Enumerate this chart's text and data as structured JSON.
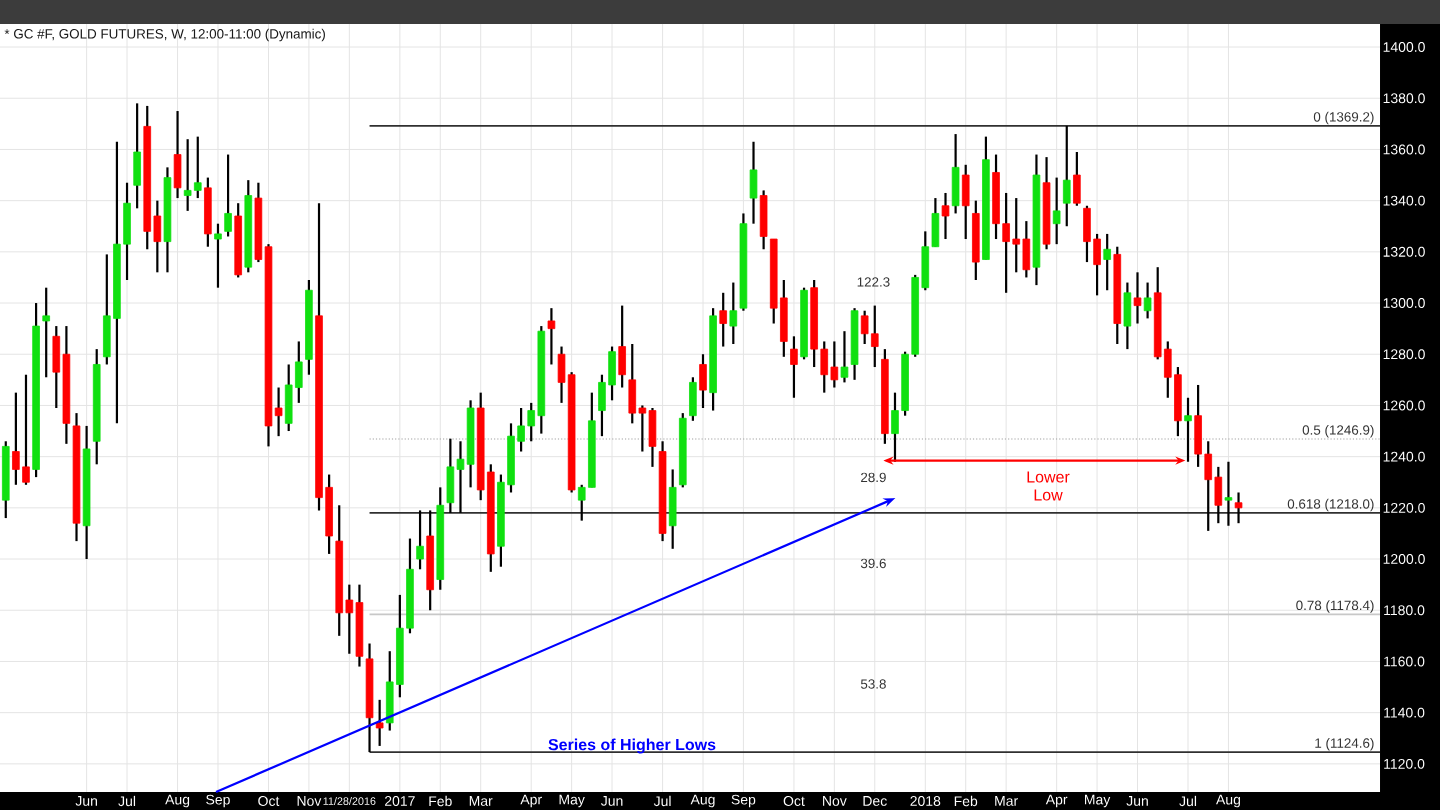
{
  "chart_data": {
    "type": "candlestick",
    "title": "* GC #F, GOLD FUTURES, W, 12:00-11:00 (Dynamic)",
    "xlim": [
      "2016-04-04",
      "2018-11-16"
    ],
    "ylim": [
      1109,
      1409
    ],
    "xticks": [
      {
        "value": "2016-06-03",
        "label": "Jun"
      },
      {
        "value": "2016-07-01",
        "label": "Jul"
      },
      {
        "value": "2016-08-05",
        "label": "Aug"
      },
      {
        "value": "2016-09-02",
        "label": "Sep"
      },
      {
        "value": "2016-10-07",
        "label": "Oct"
      },
      {
        "value": "2016-11-04",
        "label": "Nov"
      },
      {
        "value": "2016-12-02",
        "label": "11/28/2016"
      },
      {
        "value": "2017-01-06",
        "label": "2017"
      },
      {
        "value": "2017-02-03",
        "label": "Feb"
      },
      {
        "value": "2017-03-03",
        "label": "Mar"
      },
      {
        "value": "2017-04-07",
        "label": "Apr"
      },
      {
        "value": "2017-05-05",
        "label": "May"
      },
      {
        "value": "2017-06-02",
        "label": "Jun"
      },
      {
        "value": "2017-07-07",
        "label": "Jul"
      },
      {
        "value": "2017-08-04",
        "label": "Aug"
      },
      {
        "value": "2017-09-01",
        "label": "Sep"
      },
      {
        "value": "2017-10-06",
        "label": "Oct"
      },
      {
        "value": "2017-11-03",
        "label": "Nov"
      },
      {
        "value": "2017-12-01",
        "label": "Dec"
      },
      {
        "value": "2018-01-05",
        "label": "2018"
      },
      {
        "value": "2018-02-02",
        "label": "Feb"
      },
      {
        "value": "2018-03-02",
        "label": "Mar"
      },
      {
        "value": "2018-04-06",
        "label": "Apr"
      },
      {
        "value": "2018-05-04",
        "label": "May"
      },
      {
        "value": "2018-06-01",
        "label": "Jun"
      },
      {
        "value": "2018-07-06",
        "label": "Jul"
      },
      {
        "value": "2018-08-03",
        "label": "Aug"
      }
    ],
    "yticks": [
      {
        "value": 1120,
        "label": "1120.0"
      },
      {
        "value": 1140,
        "label": "1140.0"
      },
      {
        "value": 1160,
        "label": "1160.0"
      },
      {
        "value": 1180,
        "label": "1180.0"
      },
      {
        "value": 1200,
        "label": "1200.0"
      },
      {
        "value": 1220,
        "label": "1220.0"
      },
      {
        "value": 1240,
        "label": "1240.0"
      },
      {
        "value": 1260,
        "label": "1260.0"
      },
      {
        "value": 1280,
        "label": "1280.0"
      },
      {
        "value": 1300,
        "label": "1300.0"
      },
      {
        "value": 1320,
        "label": "1320.0"
      },
      {
        "value": 1340,
        "label": "1340.0"
      },
      {
        "value": 1360,
        "label": "1360.0"
      },
      {
        "value": 1380,
        "label": "1380.0"
      },
      {
        "value": 1400,
        "label": "1400.0"
      }
    ],
    "grid": true,
    "x": [
      "2016-04-08",
      "2016-04-15",
      "2016-04-22",
      "2016-04-29",
      "2016-05-06",
      "2016-05-13",
      "2016-05-20",
      "2016-05-27",
      "2016-06-03",
      "2016-06-10",
      "2016-06-17",
      "2016-06-24",
      "2016-07-01",
      "2016-07-08",
      "2016-07-15",
      "2016-07-22",
      "2016-07-29",
      "2016-08-05",
      "2016-08-12",
      "2016-08-19",
      "2016-08-26",
      "2016-09-02",
      "2016-09-09",
      "2016-09-16",
      "2016-09-23",
      "2016-09-30",
      "2016-10-07",
      "2016-10-14",
      "2016-10-21",
      "2016-10-28",
      "2016-11-04",
      "2016-11-11",
      "2016-11-18",
      "2016-11-25",
      "2016-12-02",
      "2016-12-09",
      "2016-12-16",
      "2016-12-23",
      "2016-12-30",
      "2017-01-06",
      "2017-01-13",
      "2017-01-20",
      "2017-01-27",
      "2017-02-03",
      "2017-02-10",
      "2017-02-17",
      "2017-02-24",
      "2017-03-03",
      "2017-03-10",
      "2017-03-17",
      "2017-03-24",
      "2017-03-31",
      "2017-04-07",
      "2017-04-14",
      "2017-04-21",
      "2017-04-28",
      "2017-05-05",
      "2017-05-12",
      "2017-05-19",
      "2017-05-26",
      "2017-06-02",
      "2017-06-09",
      "2017-06-16",
      "2017-06-23",
      "2017-06-30",
      "2017-07-07",
      "2017-07-14",
      "2017-07-21",
      "2017-07-28",
      "2017-08-04",
      "2017-08-11",
      "2017-08-18",
      "2017-08-25",
      "2017-09-01",
      "2017-09-08",
      "2017-09-15",
      "2017-09-22",
      "2017-09-29",
      "2017-10-06",
      "2017-10-13",
      "2017-10-20",
      "2017-10-27",
      "2017-11-03",
      "2017-11-10",
      "2017-11-17",
      "2017-11-24",
      "2017-12-01",
      "2017-12-08",
      "2017-12-15",
      "2017-12-22",
      "2017-12-29",
      "2018-01-05",
      "2018-01-12",
      "2018-01-19",
      "2018-01-26",
      "2018-02-02",
      "2018-02-09",
      "2018-02-16",
      "2018-02-23",
      "2018-03-02",
      "2018-03-09",
      "2018-03-16",
      "2018-03-23",
      "2018-03-30",
      "2018-04-06",
      "2018-04-13",
      "2018-04-20",
      "2018-04-27",
      "2018-05-04",
      "2018-05-11",
      "2018-05-18",
      "2018-05-25",
      "2018-06-01",
      "2018-06-08",
      "2018-06-15",
      "2018-06-22",
      "2018-06-29",
      "2018-07-06",
      "2018-07-13",
      "2018-07-20",
      "2018-07-27",
      "2018-08-03",
      "2018-08-10"
    ],
    "ohlc": [
      [
        1223,
        1246,
        1216,
        1244
      ],
      [
        1242,
        1265,
        1229,
        1235
      ],
      [
        1236,
        1272,
        1229,
        1230
      ],
      [
        1235,
        1300,
        1232,
        1291
      ],
      [
        1293,
        1306,
        1271,
        1295
      ],
      [
        1287,
        1291,
        1259,
        1273
      ],
      [
        1280,
        1291,
        1245,
        1253
      ],
      [
        1252,
        1257,
        1207,
        1214
      ],
      [
        1213,
        1252,
        1200,
        1243
      ],
      [
        1246,
        1282,
        1237,
        1276
      ],
      [
        1279,
        1319,
        1276,
        1295
      ],
      [
        1294,
        1363,
        1253,
        1323
      ],
      [
        1323,
        1347,
        1309,
        1339
      ],
      [
        1346,
        1378,
        1337,
        1359
      ],
      [
        1369,
        1377,
        1321,
        1328
      ],
      [
        1334,
        1340,
        1312,
        1324
      ],
      [
        1324,
        1353,
        1312,
        1349
      ],
      [
        1358,
        1375,
        1341,
        1345
      ],
      [
        1342,
        1364,
        1336,
        1344
      ],
      [
        1344,
        1365,
        1341,
        1347
      ],
      [
        1345,
        1349,
        1322,
        1327
      ],
      [
        1325,
        1331,
        1306,
        1327
      ],
      [
        1328,
        1358,
        1326,
        1335
      ],
      [
        1334,
        1339,
        1310,
        1311
      ],
      [
        1314,
        1348,
        1312,
        1342
      ],
      [
        1341,
        1347,
        1316,
        1317
      ],
      [
        1322,
        1323,
        1244,
        1252
      ],
      [
        1259,
        1267,
        1248,
        1256
      ],
      [
        1253,
        1276,
        1250,
        1268
      ],
      [
        1267,
        1285,
        1261,
        1277
      ],
      [
        1278,
        1309,
        1272,
        1305
      ],
      [
        1295,
        1339,
        1219,
        1224
      ],
      [
        1228,
        1233,
        1202,
        1209
      ],
      [
        1207,
        1221,
        1170,
        1179
      ],
      [
        1184,
        1190,
        1163,
        1179
      ],
      [
        1183,
        1190,
        1158,
        1162
      ],
      [
        1161,
        1167,
        1124.6,
        1138
      ],
      [
        1136,
        1145,
        1127,
        1134
      ],
      [
        1136,
        1164,
        1133,
        1152
      ],
      [
        1151,
        1186,
        1146,
        1173
      ],
      [
        1173,
        1208,
        1171,
        1196
      ],
      [
        1200,
        1219,
        1196,
        1205
      ],
      [
        1209,
        1219,
        1180,
        1188
      ],
      [
        1192,
        1228,
        1188,
        1221
      ],
      [
        1222,
        1247,
        1218,
        1236
      ],
      [
        1235,
        1246,
        1218,
        1239
      ],
      [
        1237,
        1262,
        1228,
        1259
      ],
      [
        1259,
        1265,
        1223,
        1227
      ],
      [
        1234,
        1237,
        1195,
        1202
      ],
      [
        1205,
        1233,
        1197,
        1230
      ],
      [
        1229,
        1253,
        1226,
        1248
      ],
      [
        1246,
        1259,
        1242,
        1252
      ],
      [
        1252,
        1261,
        1246,
        1258
      ],
      [
        1256,
        1291,
        1249,
        1289
      ],
      [
        1293,
        1298,
        1276,
        1290
      ],
      [
        1280,
        1283,
        1261,
        1269
      ],
      [
        1272,
        1273,
        1226,
        1227
      ],
      [
        1223,
        1229,
        1215,
        1228
      ],
      [
        1228,
        1265,
        1228,
        1254
      ],
      [
        1258,
        1272,
        1248,
        1269
      ],
      [
        1268,
        1283,
        1262,
        1281
      ],
      [
        1283,
        1299,
        1267,
        1272
      ],
      [
        1270,
        1284,
        1253,
        1257
      ],
      [
        1259,
        1260,
        1242,
        1257
      ],
      [
        1258,
        1259,
        1236,
        1244
      ],
      [
        1242,
        1246,
        1207,
        1210
      ],
      [
        1213,
        1235,
        1204,
        1228
      ],
      [
        1229,
        1257,
        1228,
        1255
      ],
      [
        1256,
        1271,
        1254,
        1269
      ],
      [
        1276,
        1280,
        1259,
        1266
      ],
      [
        1265,
        1298,
        1258,
        1295
      ],
      [
        1297,
        1304,
        1283,
        1292
      ],
      [
        1291,
        1308,
        1284,
        1297
      ],
      [
        1298,
        1335,
        1297,
        1331
      ],
      [
        1341,
        1363,
        1331,
        1352
      ],
      [
        1342,
        1344,
        1321,
        1326
      ],
      [
        1325,
        1325,
        1292,
        1298
      ],
      [
        1302,
        1309,
        1279,
        1285
      ],
      [
        1282,
        1287,
        1263,
        1276
      ],
      [
        1279,
        1306,
        1278,
        1305
      ],
      [
        1306,
        1309,
        1275,
        1282
      ],
      [
        1282,
        1285,
        1265,
        1272
      ],
      [
        1275,
        1285,
        1267,
        1270
      ],
      [
        1271,
        1289,
        1269,
        1275
      ],
      [
        1276,
        1298,
        1270,
        1297
      ],
      [
        1295,
        1297,
        1284,
        1288
      ],
      [
        1288,
        1299,
        1275,
        1283
      ],
      [
        1278,
        1282,
        1245,
        1249
      ],
      [
        1249,
        1265,
        1238,
        1258
      ],
      [
        1258,
        1281,
        1256,
        1280
      ],
      [
        1280,
        1311,
        1279,
        1310
      ],
      [
        1306,
        1328,
        1305,
        1322
      ],
      [
        1322,
        1341,
        1322,
        1335
      ],
      [
        1338,
        1343,
        1325,
        1334
      ],
      [
        1338,
        1366,
        1335,
        1353
      ],
      [
        1350,
        1354,
        1325,
        1338
      ],
      [
        1335,
        1340,
        1309,
        1316
      ],
      [
        1317,
        1365,
        1317,
        1356
      ],
      [
        1351,
        1358,
        1325,
        1331
      ],
      [
        1331,
        1343,
        1304,
        1324
      ],
      [
        1325,
        1341,
        1312,
        1323
      ],
      [
        1325,
        1332,
        1310,
        1313
      ],
      [
        1314,
        1358,
        1307,
        1350
      ],
      [
        1347,
        1357,
        1321,
        1323
      ],
      [
        1331,
        1349,
        1323,
        1336
      ],
      [
        1339,
        1369.2,
        1330,
        1348
      ],
      [
        1350,
        1359,
        1338,
        1339
      ],
      [
        1337,
        1338,
        1316,
        1324
      ],
      [
        1325,
        1327,
        1303,
        1315
      ],
      [
        1317,
        1327,
        1305,
        1321
      ],
      [
        1319,
        1322,
        1284,
        1292
      ],
      [
        1291,
        1308,
        1282,
        1304
      ],
      [
        1302,
        1312,
        1292,
        1299
      ],
      [
        1297,
        1308,
        1294,
        1302
      ],
      [
        1304,
        1314,
        1278,
        1279
      ],
      [
        1282,
        1285,
        1263,
        1271
      ],
      [
        1272,
        1275,
        1248,
        1254
      ],
      [
        1254,
        1263,
        1238,
        1256
      ],
      [
        1256,
        1268,
        1236,
        1241
      ],
      [
        1241,
        1246,
        1211,
        1231
      ],
      [
        1232,
        1236,
        1214,
        1221
      ],
      [
        1223,
        1238,
        1213,
        1224
      ],
      [
        1222,
        1226,
        1214,
        1220
      ]
    ],
    "colors": [
      "#10e010",
      "#ff0000",
      "#ff0000",
      "#10e010",
      "#10e010",
      "#ff0000",
      "#ff0000",
      "#ff0000",
      "#10e010",
      "#10e010",
      "#10e010",
      "#10e010",
      "#10e010",
      "#10e010",
      "#ff0000",
      "#ff0000",
      "#10e010",
      "#ff0000",
      "#10e010",
      "#10e010",
      "#ff0000",
      "#10e010",
      "#10e010",
      "#ff0000",
      "#10e010",
      "#ff0000",
      "#ff0000",
      "#ff0000",
      "#10e010",
      "#10e010",
      "#10e010",
      "#ff0000",
      "#ff0000",
      "#ff0000",
      "#ff0000",
      "#ff0000",
      "#ff0000",
      "#ff0000",
      "#10e010",
      "#10e010",
      "#10e010",
      "#10e010",
      "#ff0000",
      "#10e010",
      "#10e010",
      "#10e010",
      "#10e010",
      "#ff0000",
      "#ff0000",
      "#10e010",
      "#10e010",
      "#10e010",
      "#10e010",
      "#10e010",
      "#ff0000",
      "#ff0000",
      "#ff0000",
      "#10e010",
      "#10e010",
      "#10e010",
      "#10e010",
      "#ff0000",
      "#ff0000",
      "#ff0000",
      "#ff0000",
      "#ff0000",
      "#10e010",
      "#10e010",
      "#10e010",
      "#ff0000",
      "#10e010",
      "#ff0000",
      "#10e010",
      "#10e010",
      "#10e010",
      "#ff0000",
      "#ff0000",
      "#ff0000",
      "#ff0000",
      "#10e010",
      "#ff0000",
      "#ff0000",
      "#ff0000",
      "#10e010",
      "#10e010",
      "#ff0000",
      "#ff0000",
      "#ff0000",
      "#10e010",
      "#10e010",
      "#10e010",
      "#10e010",
      "#10e010",
      "#ff0000",
      "#10e010",
      "#ff0000",
      "#ff0000",
      "#10e010",
      "#ff0000",
      "#ff0000",
      "#ff0000",
      "#ff0000",
      "#10e010",
      "#ff0000",
      "#10e010",
      "#10e010",
      "#ff0000",
      "#ff0000",
      "#ff0000",
      "#10e010",
      "#ff0000",
      "#10e010",
      "#ff0000",
      "#10e010",
      "#ff0000",
      "#ff0000",
      "#ff0000",
      "#10e010",
      "#ff0000",
      "#ff0000",
      "#ff0000",
      "#10e010",
      "#ff0000"
    ],
    "ref_lines": [
      {
        "axis": "y",
        "value": 1369.2,
        "label": "0 (1369.2)",
        "color": "#303030"
      },
      {
        "axis": "y",
        "value": 1246.9,
        "label": "0.5 (1246.9)",
        "color": "#a0a0a0",
        "line_style": "dotted"
      },
      {
        "axis": "y",
        "value": 1218.0,
        "label": "0.618 (1218.0)",
        "color": "#303030"
      },
      {
        "axis": "y",
        "value": 1178.4,
        "label": "0.78 (1178.4)",
        "color": "#c8c8c8"
      },
      {
        "axis": "y",
        "value": 1124.6,
        "label": "1 (1124.6)",
        "color": "#303030"
      }
    ],
    "annotations": [
      "122.3",
      "28.9",
      "39.6",
      "53.8",
      "Lower Low",
      "Series of Higher Lows"
    ]
  }
}
